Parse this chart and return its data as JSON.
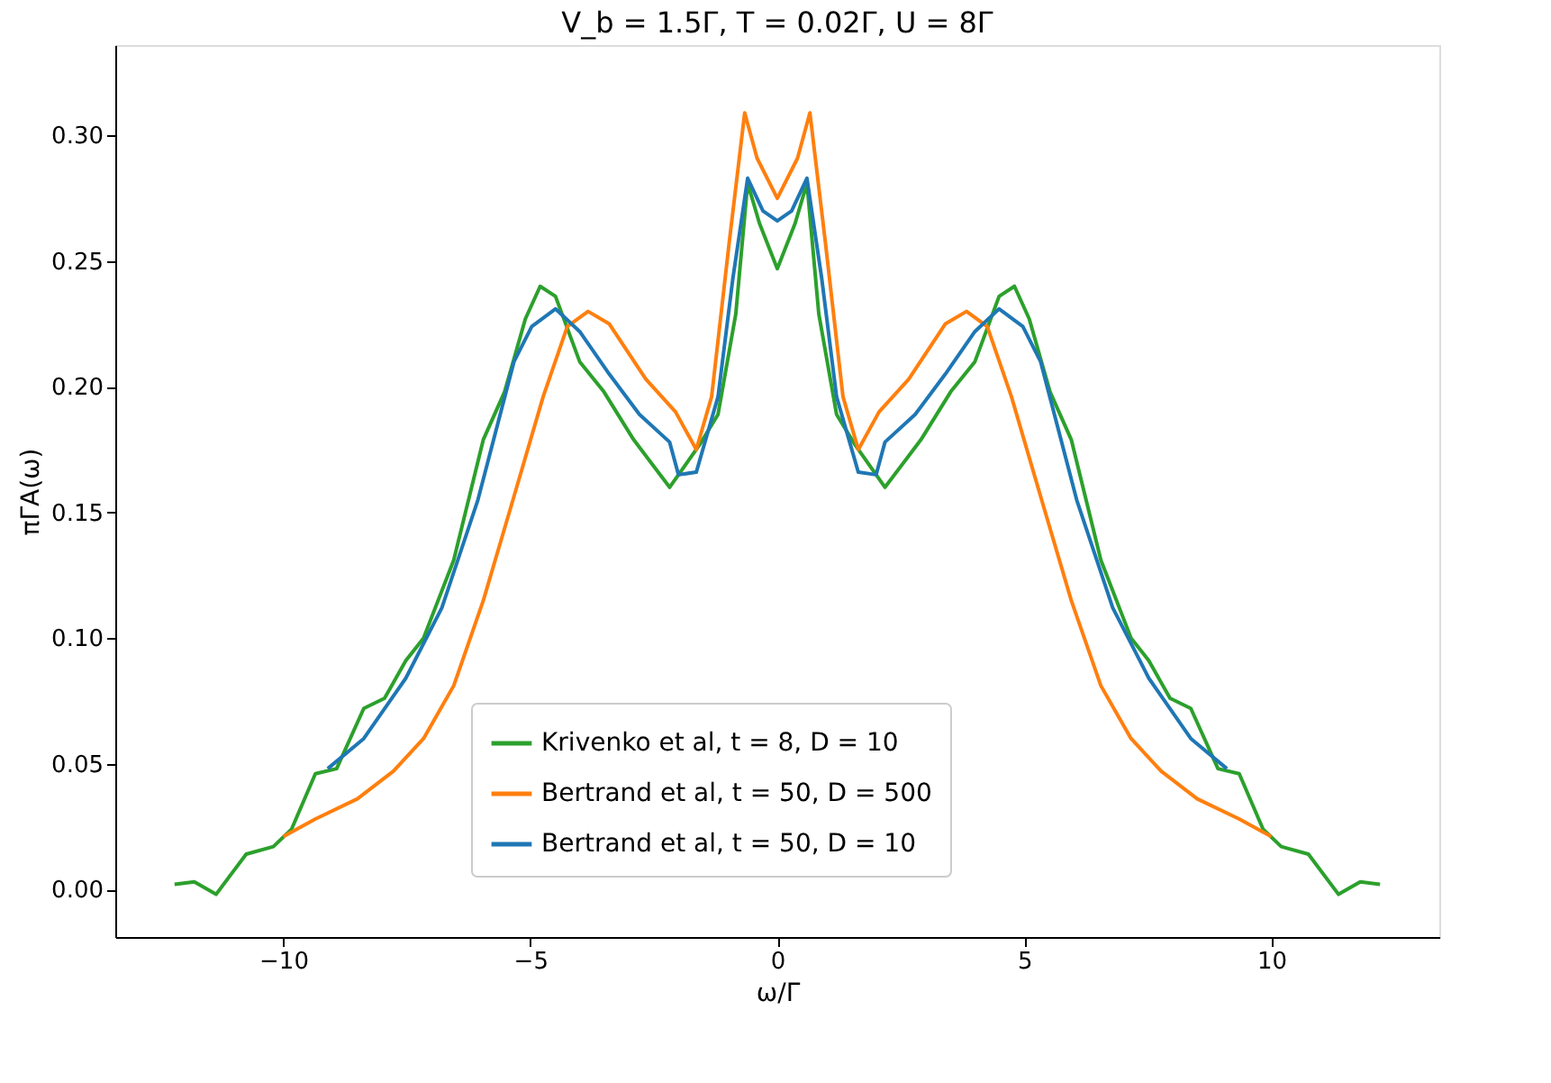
{
  "chart_data": {
    "type": "line",
    "title": "V_b = 1.5Γ, T = 0.02Γ, U = 8Γ",
    "xlabel": "ω/Γ",
    "ylabel": "πΓA(ω)",
    "xlim": [
      -13.4,
      13.4
    ],
    "ylim": [
      -0.019,
      0.336
    ],
    "xticks": [
      -10,
      -5,
      0,
      5,
      10
    ],
    "yticks": [
      {
        "value": 0,
        "label": "0.00"
      },
      {
        "value": 0.05,
        "label": "0.05"
      },
      {
        "value": 0.1,
        "label": "0.10"
      },
      {
        "value": 0.15,
        "label": "0.15"
      },
      {
        "value": 0.2,
        "label": "0.20"
      },
      {
        "value": 0.25,
        "label": "0.25"
      },
      {
        "value": 0.3,
        "label": "0.30"
      }
    ],
    "grid": false,
    "legend": "bottom",
    "line_style": "solid",
    "marker": "none",
    "series": [
      {
        "name": "Krivenko et al, t = 8, D = 10",
        "color": "#2ca02c",
        "x": [
          -12.2,
          -11.8,
          -11.36,
          -10.75,
          -10.2,
          -9.83,
          -9.35,
          -8.92,
          -8.37,
          -7.95,
          -7.52,
          -7.16,
          -6.55,
          -5.95,
          -5.52,
          -5.1,
          -4.8,
          -4.49,
          -4.0,
          -3.51,
          -2.91,
          -2.18,
          -1.57,
          -1.2,
          -0.84,
          -0.6,
          -0.36,
          0,
          0.36,
          0.6,
          0.84,
          1.2,
          1.57,
          2.18,
          2.91,
          3.51,
          4.0,
          4.49,
          4.8,
          5.1,
          5.52,
          5.95,
          6.55,
          7.16,
          7.52,
          7.95,
          8.37,
          8.92,
          9.35,
          9.83,
          10.2,
          10.75,
          11.36,
          11.8,
          12.2
        ],
        "values": [
          0.002,
          0.003,
          -0.002,
          0.014,
          0.017,
          0.024,
          0.046,
          0.048,
          0.072,
          0.076,
          0.091,
          0.1,
          0.131,
          0.179,
          0.198,
          0.227,
          0.24,
          0.236,
          0.21,
          0.198,
          0.179,
          0.16,
          0.177,
          0.189,
          0.229,
          0.281,
          0.265,
          0.247,
          0.265,
          0.281,
          0.229,
          0.189,
          0.177,
          0.16,
          0.179,
          0.198,
          0.21,
          0.236,
          0.24,
          0.227,
          0.198,
          0.179,
          0.131,
          0.1,
          0.091,
          0.076,
          0.072,
          0.048,
          0.046,
          0.024,
          0.017,
          0.014,
          -0.002,
          0.003,
          0.002
        ]
      },
      {
        "name": "Bertrand et al, t = 50, D = 500",
        "color": "#ff7f0e",
        "x": [
          -10,
          -9.35,
          -8.5,
          -7.77,
          -7.16,
          -6.55,
          -5.95,
          -5.35,
          -4.74,
          -4.25,
          -3.83,
          -3.4,
          -2.66,
          -2.06,
          -1.64,
          -1.33,
          -0.97,
          -0.66,
          -0.41,
          0,
          0.41,
          0.66,
          0.97,
          1.33,
          1.64,
          2.06,
          2.66,
          3.4,
          3.83,
          4.25,
          4.74,
          5.35,
          5.95,
          6.55,
          7.16,
          7.77,
          8.5,
          9.35,
          10
        ],
        "values": [
          0.021,
          0.028,
          0.036,
          0.047,
          0.06,
          0.081,
          0.115,
          0.155,
          0.196,
          0.224,
          0.23,
          0.225,
          0.203,
          0.19,
          0.175,
          0.196,
          0.258,
          0.309,
          0.291,
          0.275,
          0.291,
          0.309,
          0.258,
          0.196,
          0.175,
          0.19,
          0.203,
          0.225,
          0.23,
          0.224,
          0.196,
          0.155,
          0.115,
          0.081,
          0.06,
          0.047,
          0.036,
          0.028,
          0.021
        ]
      },
      {
        "name": "Bertrand et al, t = 50, D = 10",
        "color": "#1f77b4",
        "x": [
          -9.1,
          -8.37,
          -7.52,
          -6.79,
          -6.06,
          -5.33,
          -4.97,
          -4.49,
          -4.0,
          -3.4,
          -2.79,
          -2.18,
          -2.0,
          -1.64,
          -1.2,
          -0.9,
          -0.6,
          -0.29,
          0,
          0.29,
          0.6,
          0.9,
          1.2,
          1.64,
          2.0,
          2.18,
          2.79,
          3.4,
          4.0,
          4.49,
          4.97,
          5.33,
          6.06,
          6.79,
          7.52,
          8.37,
          9.1
        ],
        "values": [
          0.048,
          0.06,
          0.084,
          0.112,
          0.155,
          0.21,
          0.224,
          0.231,
          0.222,
          0.205,
          0.189,
          0.178,
          0.165,
          0.166,
          0.196,
          0.243,
          0.283,
          0.27,
          0.266,
          0.27,
          0.283,
          0.243,
          0.196,
          0.166,
          0.165,
          0.178,
          0.189,
          0.205,
          0.222,
          0.231,
          0.224,
          0.21,
          0.155,
          0.112,
          0.084,
          0.06,
          0.048
        ]
      }
    ]
  }
}
